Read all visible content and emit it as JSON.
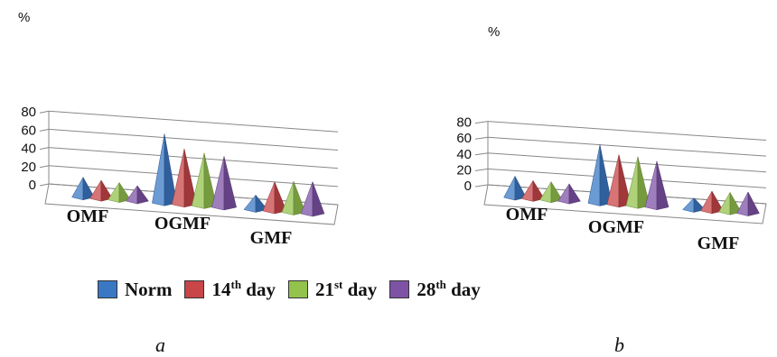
{
  "colors": {
    "series": [
      "#3b78c4",
      "#c84548",
      "#93c24d",
      "#7e53a6"
    ],
    "axis": "#888888"
  },
  "legend": {
    "items": [
      {
        "base": "Norm",
        "sup": "",
        "tail": ""
      },
      {
        "base": "14",
        "sup": "th",
        "tail": " day"
      },
      {
        "base": "21",
        "sup": "st",
        "tail": " day"
      },
      {
        "base": "28",
        "sup": "th",
        "tail": " day"
      }
    ]
  },
  "panel_labels": [
    "a",
    "b"
  ],
  "chart_data": [
    {
      "type": "bar",
      "panel": "a",
      "ylabel": "%",
      "ylim": [
        0,
        80
      ],
      "yticks": [
        0,
        20,
        40,
        60,
        80
      ],
      "categories": [
        "OMF",
        "OGMF",
        "GMF"
      ],
      "series": [
        {
          "name": "Norm",
          "values": [
            16,
            70,
            10
          ]
        },
        {
          "name": "14th day",
          "values": [
            14,
            55,
            26
          ]
        },
        {
          "name": "21st day",
          "values": [
            13,
            52,
            28
          ]
        },
        {
          "name": "28th day",
          "values": [
            11,
            50,
            29
          ]
        }
      ],
      "grid": true
    },
    {
      "type": "bar",
      "panel": "b",
      "ylabel": "%",
      "ylim": [
        0,
        80
      ],
      "yticks": [
        0,
        20,
        40,
        60,
        80
      ],
      "categories": [
        "OMF",
        "OGMF",
        "GMF"
      ],
      "series": [
        {
          "name": "Norm",
          "values": [
            20,
            67,
            8
          ]
        },
        {
          "name": "14th day",
          "values": [
            16,
            56,
            18
          ]
        },
        {
          "name": "21st day",
          "values": [
            16,
            55,
            18
          ]
        },
        {
          "name": "28th day",
          "values": [
            15,
            51,
            20
          ]
        }
      ],
      "grid": true
    }
  ]
}
